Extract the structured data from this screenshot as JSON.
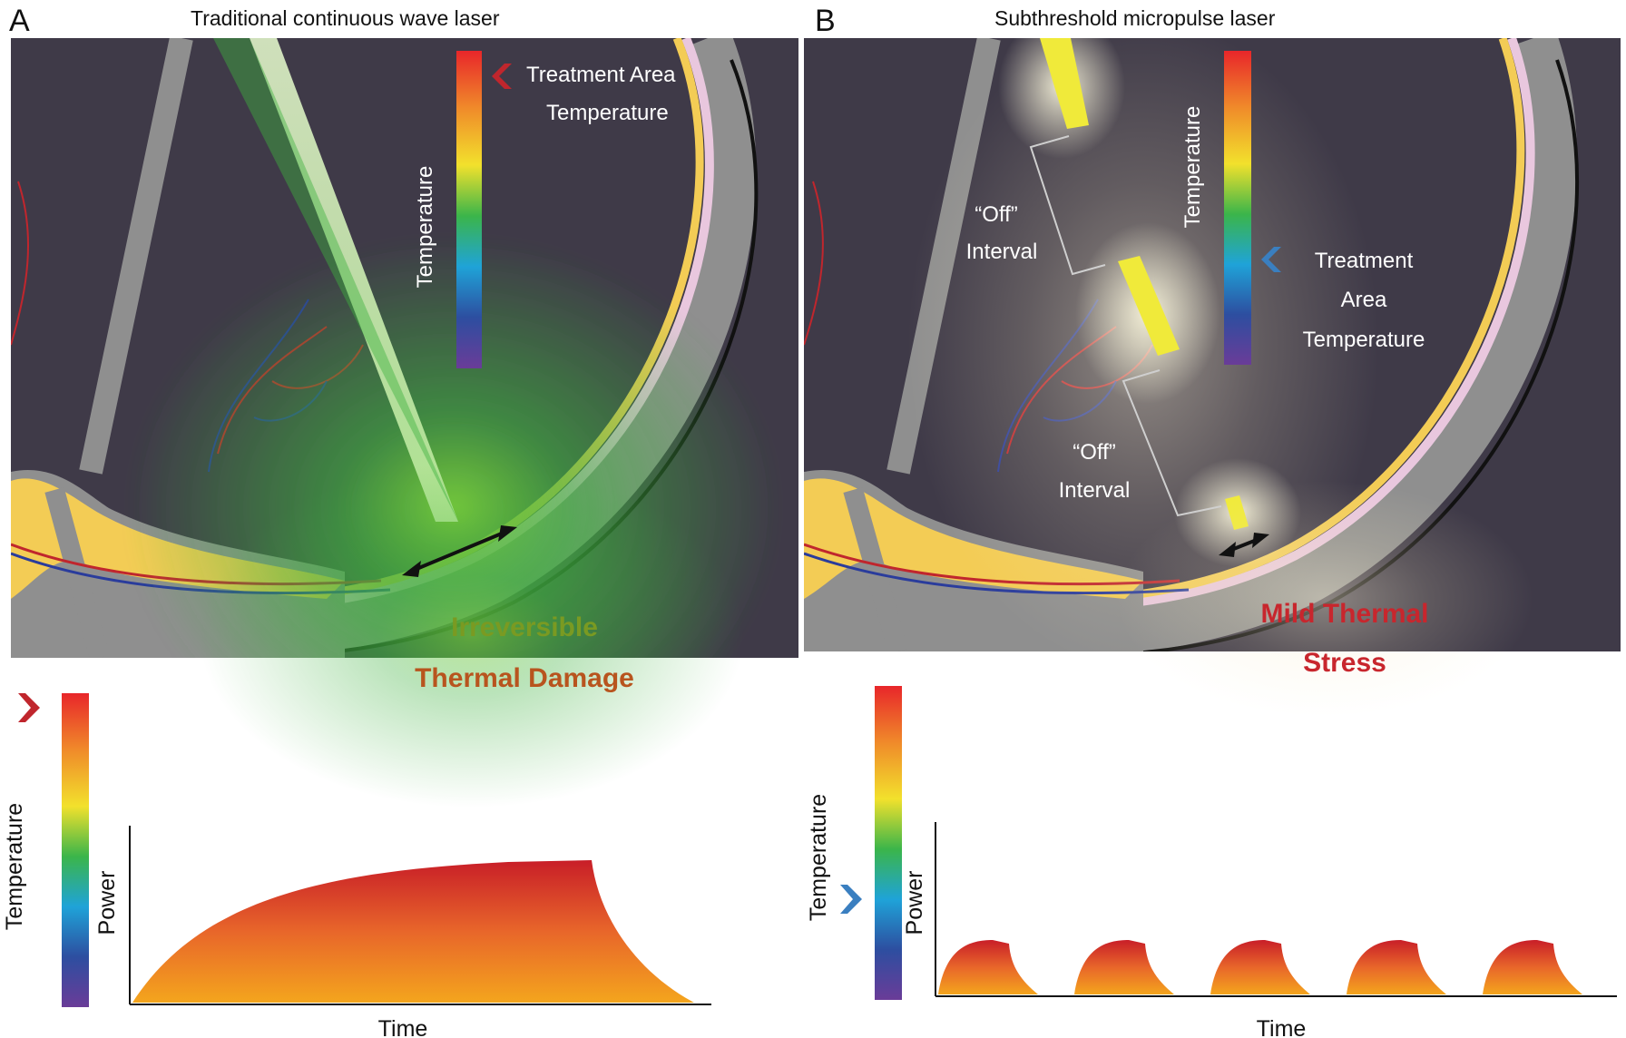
{
  "colors": {
    "fundus_bg": "#3f3a48",
    "sclera": "#8f8f8f",
    "choroid": "#f3cc55",
    "retina_pink": "#e9c7de",
    "vessel_red": "#c0262d",
    "vessel_blue": "#2a3c9c",
    "laser_green": "#3fb23f",
    "micropulse_yellow": "#f0ea3a",
    "damage_text_top": "#7a9a22",
    "damage_text_bottom": "#b8541e",
    "stress_text": "#c8262d",
    "marker_red": "#c0262d",
    "marker_blue": "#3a7fc0"
  },
  "panel_a": {
    "letter": "A",
    "title": "Traditional continuous wave laser",
    "scale_label": "Temperature",
    "marker_label_line1": "Treatment  Area",
    "marker_label_line2": "Temperature",
    "damage_line1": "Irreversible",
    "damage_line2": "Thermal Damage",
    "chart": {
      "temperature_label": "Temperature",
      "ylabel": "Power",
      "xlabel": "Time"
    }
  },
  "panel_b": {
    "letter": "B",
    "title": "Subthreshold micropulse laser",
    "scale_label": "Temperature",
    "off_label_1_line1": "“Off”",
    "off_label_1_line2": "Interval",
    "off_label_2_line1": "“Off”",
    "off_label_2_line2": "Interval",
    "marker_label_line1": "Treatment",
    "marker_label_line2": "Area",
    "marker_label_line3": "Temperature",
    "stress_line1": "Mild Thermal",
    "stress_line2": "Stress",
    "chart": {
      "temperature_label": "Temperature",
      "ylabel": "Power",
      "xlabel": "Time",
      "pulse_count": 5
    }
  }
}
